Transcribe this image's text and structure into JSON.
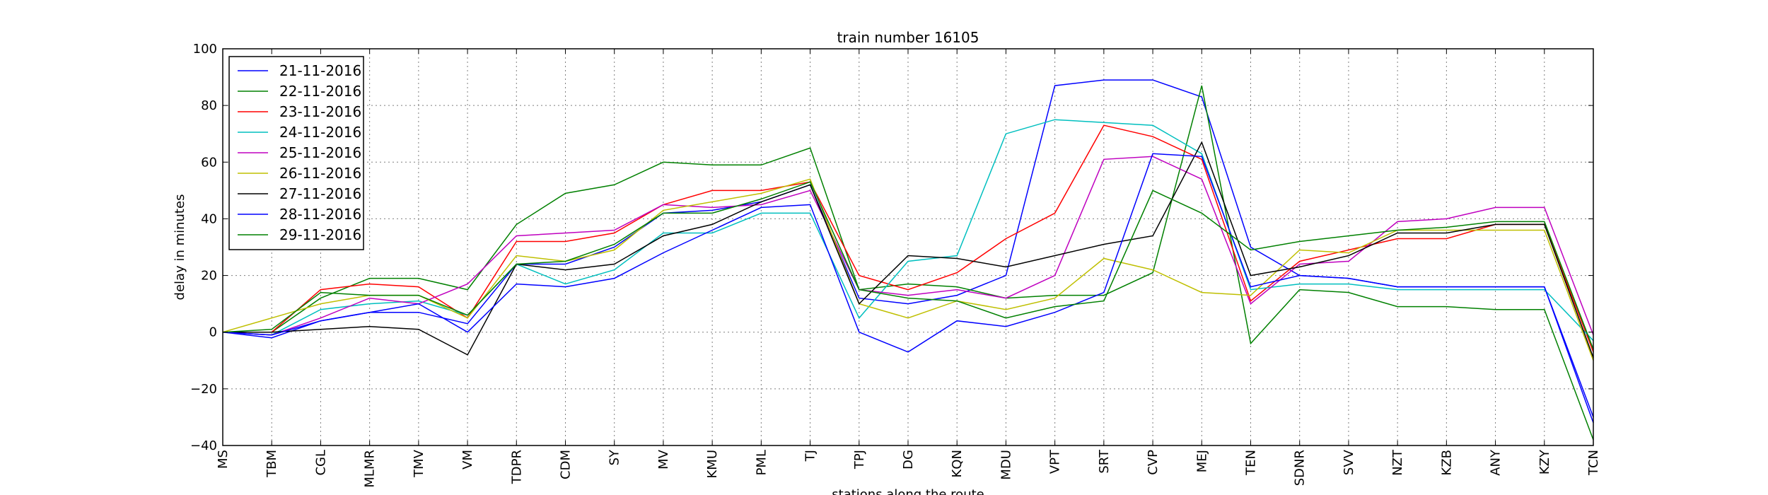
{
  "chart_data": {
    "type": "line",
    "title": "train number 16105",
    "xlabel": "stations along the route",
    "ylabel": "delay in minutes",
    "ylim": [
      -40,
      100
    ],
    "yticks": [
      -40,
      -20,
      0,
      20,
      40,
      60,
      80,
      100
    ],
    "grid": true,
    "legend_position": "top-left",
    "categories": [
      "MS",
      "TBM",
      "CGL",
      "MLMR",
      "TMV",
      "VM",
      "TDPR",
      "CDM",
      "SY",
      "MV",
      "KMU",
      "PML",
      "TJ",
      "TPJ",
      "DG",
      "KQN",
      "MDU",
      "VPT",
      "SRT",
      "CVP",
      "MEJ",
      "TEN",
      "SDNR",
      "SVV",
      "NZT",
      "KZB",
      "ANY",
      "KZY",
      "TCN"
    ],
    "series": [
      {
        "name": "21-11-2016",
        "color": "#0000ff",
        "values": [
          0,
          -2,
          4,
          7,
          7,
          3,
          24,
          24,
          30,
          42,
          43,
          46,
          52,
          12,
          10,
          13,
          20,
          87,
          89,
          89,
          83,
          30,
          20,
          19,
          16,
          16,
          16,
          16,
          -30
        ]
      },
      {
        "name": "22-11-2016",
        "color": "#008000",
        "values": [
          0,
          0,
          12,
          19,
          19,
          15,
          38,
          49,
          52,
          60,
          59,
          59,
          65,
          15,
          17,
          16,
          12,
          13,
          13,
          21,
          87,
          -4,
          15,
          14,
          9,
          9,
          8,
          8,
          -38
        ]
      },
      {
        "name": "23-11-2016",
        "color": "#ff0000",
        "values": [
          0,
          0,
          15,
          17,
          16,
          5,
          32,
          32,
          35,
          45,
          50,
          50,
          53,
          20,
          15,
          21,
          33,
          42,
          73,
          69,
          61,
          11,
          25,
          29,
          33,
          33,
          38,
          38,
          -7
        ]
      },
      {
        "name": "24-11-2016",
        "color": "#00bfbf",
        "values": [
          0,
          -1,
          8,
          10,
          11,
          6,
          24,
          17,
          22,
          35,
          35,
          42,
          42,
          5,
          25,
          27,
          70,
          75,
          74,
          73,
          63,
          15,
          17,
          17,
          15,
          15,
          15,
          15,
          -3
        ]
      },
      {
        "name": "25-11-2016",
        "color": "#bf00bf",
        "values": [
          0,
          -1,
          5,
          12,
          10,
          17,
          34,
          35,
          36,
          45,
          44,
          45,
          50,
          15,
          13,
          15,
          12,
          20,
          61,
          62,
          54,
          10,
          24,
          25,
          39,
          40,
          44,
          44,
          -1
        ]
      },
      {
        "name": "26-11-2016",
        "color": "#bfbf00",
        "values": [
          0,
          5,
          10,
          13,
          13,
          5,
          27,
          25,
          29,
          43,
          46,
          49,
          54,
          10,
          5,
          11,
          8,
          12,
          26,
          22,
          14,
          13,
          29,
          28,
          36,
          36,
          36,
          36,
          -10
        ]
      },
      {
        "name": "27-11-2016",
        "color": "#000000",
        "values": [
          0,
          0,
          1,
          2,
          1,
          -8,
          24,
          22,
          24,
          34,
          38,
          46,
          52,
          10,
          27,
          26,
          23,
          27,
          31,
          34,
          67,
          20,
          23,
          27,
          35,
          35,
          38,
          38,
          -9
        ]
      },
      {
        "name": "28-11-2016",
        "color": "#0000ff",
        "values": [
          0,
          -1,
          4,
          7,
          10,
          0,
          17,
          16,
          19,
          28,
          36,
          44,
          45,
          0,
          -7,
          4,
          2,
          7,
          14,
          63,
          62,
          16,
          20,
          19,
          16,
          16,
          16,
          16,
          -32
        ]
      },
      {
        "name": "29-11-2016",
        "color": "#008000",
        "values": [
          0,
          1,
          14,
          13,
          13,
          6,
          24,
          25,
          31,
          42,
          42,
          47,
          53,
          15,
          12,
          11,
          5,
          9,
          11,
          50,
          42,
          29,
          32,
          34,
          36,
          37,
          39,
          39,
          -6
        ]
      }
    ]
  }
}
